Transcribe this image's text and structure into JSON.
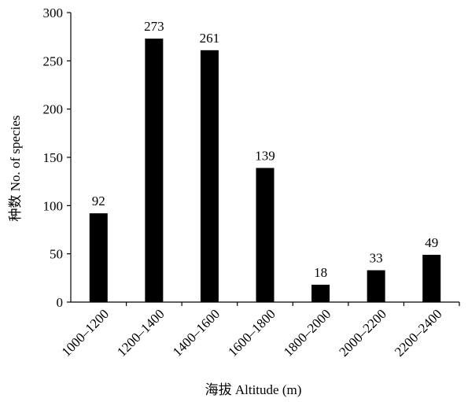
{
  "chart_data": {
    "type": "bar",
    "categories": [
      "1000–1200",
      "1200–1400",
      "1400–1600",
      "1600–1800",
      "1800–2000",
      "2000–2200",
      "2200–2400"
    ],
    "values": [
      92,
      273,
      261,
      139,
      18,
      33,
      49
    ],
    "data_labels": [
      "92",
      "273",
      "261",
      "139",
      "18",
      "33",
      "49"
    ],
    "title": "",
    "xlabel": "海拔 Altitude (m)",
    "ylabel": "种数 No. of species",
    "ylim": [
      0,
      300
    ],
    "yticks": [
      "0",
      "50",
      "100",
      "150",
      "200",
      "250",
      "300"
    ],
    "grid": false,
    "legend": "none",
    "bar_color": "#000000"
  }
}
